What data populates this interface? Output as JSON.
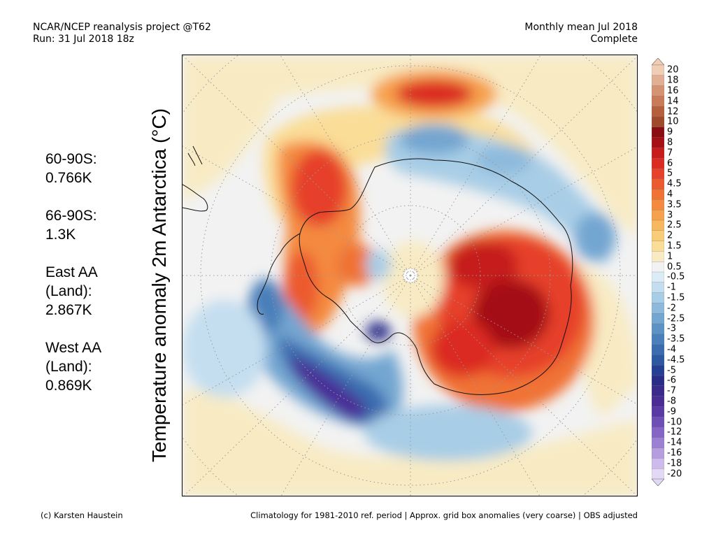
{
  "header": {
    "left_line1": "NCAR/NCEP reanalysis project @T62",
    "left_line2": "Run: 31 Jul 2018 18z",
    "right_line1": "Monthly mean Jul 2018",
    "right_line2": "Complete"
  },
  "axis_title": "Temperature anomaly 2m Antarctica (°C)",
  "stats": [
    {
      "lines": [
        "60-90S:",
        " 0.766K"
      ]
    },
    {
      "lines": [
        "66-90S:",
        " 1.3K"
      ]
    },
    {
      "lines": [
        "East AA",
        " (Land):",
        " 2.867K"
      ]
    },
    {
      "lines": [
        "West AA",
        " (Land):",
        " 0.869K"
      ]
    }
  ],
  "colorbar": {
    "labels": [
      "20",
      "18",
      "16",
      "14",
      "12",
      "10",
      "9",
      "8",
      "7",
      "6",
      "5",
      "4.5",
      "4",
      "3.5",
      "3",
      "2.5",
      "2",
      "1.5",
      "1",
      "0.5",
      "-0.5",
      "-1",
      "-1.5",
      "-2",
      "-2.5",
      "-3",
      "-3.5",
      "-4",
      "-4.5",
      "-5",
      "-6",
      "-7",
      "-8",
      "-9",
      "-10",
      "-12",
      "-14",
      "-16",
      "-18",
      "-20"
    ],
    "colors": [
      "#f2cdb6",
      "#e2ae94",
      "#d69374",
      "#c97a58",
      "#b55f3d",
      "#9e4a2b",
      "#8a0d12",
      "#a50f15",
      "#c61c1c",
      "#db2b23",
      "#e6412a",
      "#ec5a2f",
      "#f07235",
      "#f48a3f",
      "#f6a14d",
      "#f8b85f",
      "#f9cc78",
      "#fadd97",
      "#f8ebc4",
      "#f2f2f2",
      "#dcecf6",
      "#c4def0",
      "#a8cde6",
      "#8dbadc",
      "#73a6d1",
      "#5d92c5",
      "#497fba",
      "#3a6caf",
      "#2c59a2",
      "#243f94",
      "#2a2d88",
      "#3a2a8c",
      "#4a2c96",
      "#5a3aa4",
      "#6f4fb6",
      "#8566c6",
      "#9c80d4",
      "#b59ddf",
      "#cdbceb",
      "#e4d9f5"
    ]
  },
  "footer": {
    "left": "(c) Karsten Haustein",
    "right": "Climatology for 1981-2010 ref. period | Approx. grid box anomalies (very coarse) | OBS adjusted"
  },
  "map": {
    "projection": "south polar stereographic",
    "pole_marker": true
  }
}
